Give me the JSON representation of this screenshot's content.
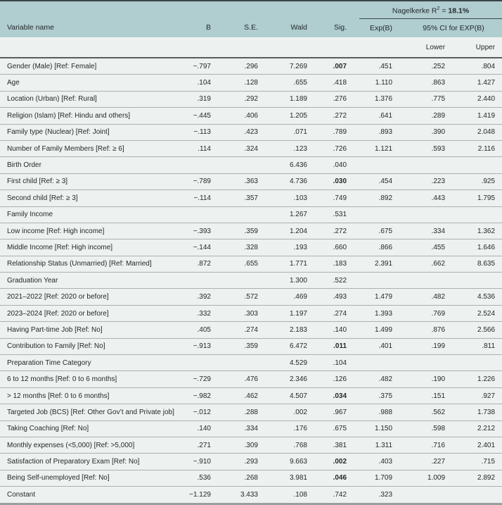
{
  "header": {
    "nagelkerke_prefix": "Nagelkerke R",
    "nagelkerke_sup": "2",
    "nagelkerke_eq": " = ",
    "nagelkerke_value": "18.1%",
    "columns": [
      "Variable name",
      "B",
      "S.E.",
      "Wald",
      "Sig.",
      "Exp(B)",
      "95% CI for EXP(B)"
    ],
    "subcolumns": [
      "Lower",
      "Upper"
    ]
  },
  "colors": {
    "header_band": "#b0cdd0",
    "row_bg": "#edf1ef",
    "top_border": "#3a4446",
    "bottom_border": "#97a09d",
    "row_separator": "#a9b3b0",
    "header_rule": "#565f5d"
  },
  "table": {
    "col_keys": [
      "variable",
      "b",
      "se",
      "wald",
      "sig",
      "exp_b",
      "lower",
      "upper"
    ],
    "rows": [
      {
        "variable": "Gender (Male) [Ref: Female]",
        "b": "−.797",
        "se": ".296",
        "wald": "7.269",
        "sig": ".007",
        "sig_bold": true,
        "exp_b": ".451",
        "lower": ".252",
        "upper": ".804"
      },
      {
        "variable": "Age",
        "b": ".104",
        "se": ".128",
        "wald": ".655",
        "sig": ".418",
        "sig_bold": false,
        "exp_b": "1.110",
        "lower": ".863",
        "upper": "1.427"
      },
      {
        "variable": "Location (Urban) [Ref: Rural]",
        "b": ".319",
        "se": ".292",
        "wald": "1.189",
        "sig": ".276",
        "sig_bold": false,
        "exp_b": "1.376",
        "lower": ".775",
        "upper": "2.440"
      },
      {
        "variable": "Religion (Islam) [Ref: Hindu and others]",
        "b": "−.445",
        "se": ".406",
        "wald": "1.205",
        "sig": ".272",
        "sig_bold": false,
        "exp_b": ".641",
        "lower": ".289",
        "upper": "1.419"
      },
      {
        "variable": "Family type (Nuclear) [Ref: Joint]",
        "b": "−.113",
        "se": ".423",
        "wald": ".071",
        "sig": ".789",
        "sig_bold": false,
        "exp_b": ".893",
        "lower": ".390",
        "upper": "2.048"
      },
      {
        "variable": "Number of Family Members [Ref: ≥ 6]",
        "b": ".114",
        "se": ".324",
        "wald": ".123",
        "sig": ".726",
        "sig_bold": false,
        "exp_b": "1.121",
        "lower": ".593",
        "upper": "2.116"
      },
      {
        "variable": "Birth Order",
        "b": "",
        "se": "",
        "wald": "6.436",
        "sig": ".040",
        "sig_bold": false,
        "exp_b": "",
        "lower": "",
        "upper": ""
      },
      {
        "variable": "First child [Ref: ≥ 3]",
        "b": "−.789",
        "se": ".363",
        "wald": "4.736",
        "sig": ".030",
        "sig_bold": true,
        "exp_b": ".454",
        "lower": ".223",
        "upper": ".925"
      },
      {
        "variable": "Second child [Ref: ≥ 3]",
        "b": "−.114",
        "se": ".357",
        "wald": ".103",
        "sig": ".749",
        "sig_bold": false,
        "exp_b": ".892",
        "lower": ".443",
        "upper": "1.795"
      },
      {
        "variable": "Family Income",
        "b": "",
        "se": "",
        "wald": "1.267",
        "sig": ".531",
        "sig_bold": false,
        "exp_b": "",
        "lower": "",
        "upper": ""
      },
      {
        "variable": "Low income [Ref: High income]",
        "b": "−.393",
        "se": ".359",
        "wald": "1.204",
        "sig": ".272",
        "sig_bold": false,
        "exp_b": ".675",
        "lower": ".334",
        "upper": "1.362"
      },
      {
        "variable": "Middle Income [Ref: High income]",
        "b": "−.144",
        "se": ".328",
        "wald": ".193",
        "sig": ".660",
        "sig_bold": false,
        "exp_b": ".866",
        "lower": ".455",
        "upper": "1.646"
      },
      {
        "variable": "Relationship Status (Unmarried) [Ref: Married]",
        "b": ".872",
        "se": ".655",
        "wald": "1.771",
        "sig": ".183",
        "sig_bold": false,
        "exp_b": "2.391",
        "lower": ".662",
        "upper": "8.635"
      },
      {
        "variable": "Graduation Year",
        "b": "",
        "se": "",
        "wald": "1.300",
        "sig": ".522",
        "sig_bold": false,
        "exp_b": "",
        "lower": "",
        "upper": ""
      },
      {
        "variable": "2021–2022 [Ref: 2020 or before]",
        "b": ".392",
        "se": ".572",
        "wald": ".469",
        "sig": ".493",
        "sig_bold": false,
        "exp_b": "1.479",
        "lower": ".482",
        "upper": "4.536"
      },
      {
        "variable": "2023–2024 [Ref: 2020 or before]",
        "b": ".332",
        "se": ".303",
        "wald": "1.197",
        "sig": ".274",
        "sig_bold": false,
        "exp_b": "1.393",
        "lower": ".769",
        "upper": "2.524"
      },
      {
        "variable": "Having Part-time Job [Ref: No]",
        "b": ".405",
        "se": ".274",
        "wald": "2.183",
        "sig": ".140",
        "sig_bold": false,
        "exp_b": "1.499",
        "lower": ".876",
        "upper": "2.566"
      },
      {
        "variable": "Contribution to Family [Ref: No]",
        "b": "−.913",
        "se": ".359",
        "wald": "6.472",
        "sig": ".011",
        "sig_bold": true,
        "exp_b": ".401",
        "lower": ".199",
        "upper": ".811"
      },
      {
        "variable": "Preparation Time Category",
        "b": "",
        "se": "",
        "wald": "4.529",
        "sig": ".104",
        "sig_bold": false,
        "exp_b": "",
        "lower": "",
        "upper": ""
      },
      {
        "variable": "6 to 12 months [Ref: 0 to 6 months]",
        "b": "−.729",
        "se": ".476",
        "wald": "2.346",
        "sig": ".126",
        "sig_bold": false,
        "exp_b": ".482",
        "lower": ".190",
        "upper": "1.226"
      },
      {
        "variable": "> 12 months [Ref: 0 to 6 months]",
        "b": "−.982",
        "se": ".462",
        "wald": "4.507",
        "sig": ".034",
        "sig_bold": true,
        "exp_b": ".375",
        "lower": ".151",
        "upper": ".927"
      },
      {
        "variable": "Targeted Job (BCS) [Ref: Other Gov’t and Private job]",
        "b": "−.012",
        "se": ".288",
        "wald": ".002",
        "sig": ".967",
        "sig_bold": false,
        "exp_b": ".988",
        "lower": ".562",
        "upper": "1.738"
      },
      {
        "variable": "Taking Coaching [Ref: No]",
        "b": ".140",
        "se": ".334",
        "wald": ".176",
        "sig": ".675",
        "sig_bold": false,
        "exp_b": "1.150",
        "lower": ".598",
        "upper": "2.212"
      },
      {
        "variable": "Monthly expenses (<5,000) [Ref: >5,000]",
        "b": ".271",
        "se": ".309",
        "wald": ".768",
        "sig": ".381",
        "sig_bold": false,
        "exp_b": "1.311",
        "lower": ".716",
        "upper": "2.401"
      },
      {
        "variable": "Satisfaction of Preparatory Exam [Ref: No]",
        "b": "−.910",
        "se": ".293",
        "wald": "9.663",
        "sig": ".002",
        "sig_bold": true,
        "exp_b": ".403",
        "lower": ".227",
        "upper": ".715"
      },
      {
        "variable": "Being Self-unemployed [Ref: No]",
        "b": ".536",
        "se": ".268",
        "wald": "3.981",
        "sig": ".046",
        "sig_bold": true,
        "exp_b": "1.709",
        "lower": "1.009",
        "upper": "2.892"
      },
      {
        "variable": "Constant",
        "b": "−1.129",
        "se": "3.433",
        "wald": ".108",
        "sig": ".742",
        "sig_bold": false,
        "exp_b": ".323",
        "lower": "",
        "upper": ""
      }
    ]
  }
}
